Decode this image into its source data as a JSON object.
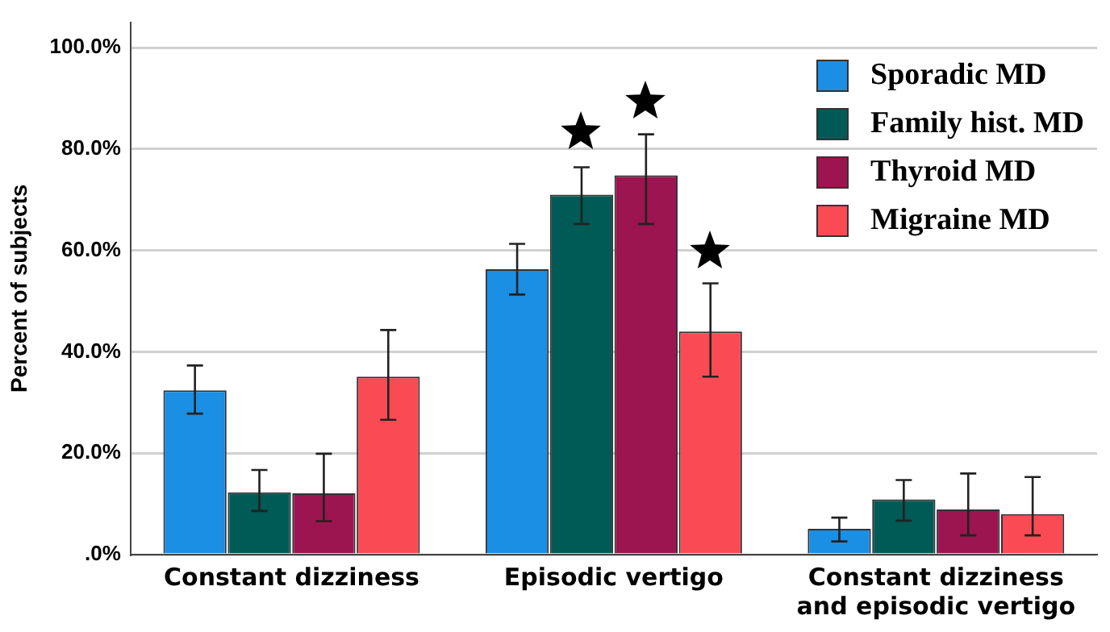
{
  "chart_data": {
    "type": "bar",
    "ylabel": "Percent of subjects",
    "categories": [
      "Constant dizziness",
      "Episodic vertigo",
      "Constant dizziness and episodic vertigo"
    ],
    "series": [
      {
        "name": "Sporadic MD",
        "color": "#1a8fe3",
        "values": [
          32.4,
          56.3,
          5.1
        ],
        "errors": [
          [
            27.8,
            37.3
          ],
          [
            51.3,
            61.3
          ],
          [
            2.6,
            7.3
          ]
        ]
      },
      {
        "name": "Family hist. MD",
        "color": "#005a55",
        "values": [
          12.3,
          71.0,
          10.9
        ],
        "errors": [
          [
            8.6,
            16.7
          ],
          [
            65.2,
            76.4
          ],
          [
            6.7,
            14.7
          ]
        ]
      },
      {
        "name": "Thyroid MD",
        "color": "#9c1450",
        "values": [
          12.1,
          74.8,
          8.9
        ],
        "errors": [
          [
            6.6,
            19.9
          ],
          [
            65.2,
            82.9
          ],
          [
            3.8,
            16.0
          ]
        ]
      },
      {
        "name": "Migraine MD",
        "color": "#fa4b55",
        "values": [
          35.1,
          44.0,
          8.0
        ],
        "errors": [
          [
            26.6,
            44.3
          ],
          [
            35.1,
            53.5
          ],
          [
            3.8,
            15.3
          ]
        ]
      }
    ],
    "ylim": [
      0,
      105
    ],
    "yticks": [
      {
        "value": 0,
        "label": ".0%"
      },
      {
        "value": 20,
        "label": "20.0%"
      },
      {
        "value": 40,
        "label": "40.0%"
      },
      {
        "value": 60,
        "label": "60.0%"
      },
      {
        "value": 80,
        "label": "80.0%"
      },
      {
        "value": 100,
        "label": "100.0%"
      }
    ],
    "grid": "y",
    "legend": "top right"
  }
}
